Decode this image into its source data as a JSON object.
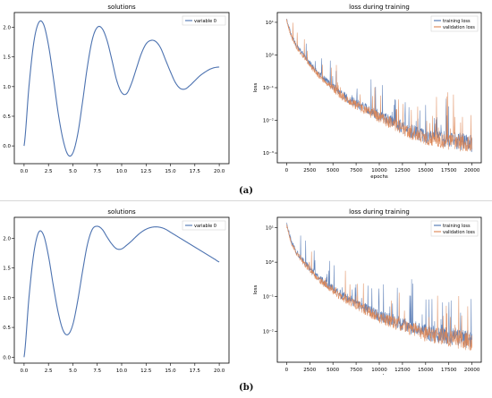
{
  "labels": {
    "a": "(a)",
    "b": "(b)"
  },
  "colors": {
    "solution": "#4c72b0",
    "training": "#4c72b0",
    "validation": "#dd8452",
    "axis": "#000000"
  },
  "chart_data": [
    {
      "id": "a-solutions",
      "type": "line",
      "title": "solutions",
      "legend": [
        "variable 0"
      ],
      "legend_position": "top-right",
      "xlim": [
        -1,
        21
      ],
      "ylim": [
        -0.3,
        2.25
      ],
      "x_ticks": [
        0.0,
        2.5,
        5.0,
        7.5,
        10.0,
        12.5,
        15.0,
        17.5,
        20.0
      ],
      "x_tick_labels": [
        "0.0",
        "2.5",
        "5.0",
        "7.5",
        "10.0",
        "12.5",
        "15.0",
        "17.5",
        "20.0"
      ],
      "y_ticks": [
        0.0,
        0.5,
        1.0,
        1.5,
        2.0
      ],
      "y_tick_labels": [
        "0.0",
        "0.5",
        "1.0",
        "1.5",
        "2.0"
      ],
      "series": [
        {
          "name": "variable 0",
          "x": [
            0,
            0.5,
            1,
            1.5,
            2,
            2.5,
            3,
            3.5,
            4,
            4.5,
            5,
            5.5,
            6,
            6.5,
            7,
            7.5,
            8,
            8.5,
            9,
            9.5,
            10,
            10.5,
            11,
            11.5,
            12,
            12.5,
            13,
            13.5,
            14,
            14.5,
            15,
            15.5,
            16,
            16.5,
            17,
            17.5,
            18,
            18.5,
            19,
            19.5,
            20
          ],
          "y": [
            0.0,
            1.0,
            1.75,
            2.08,
            2.05,
            1.7,
            1.15,
            0.55,
            0.1,
            -0.15,
            -0.12,
            0.2,
            0.75,
            1.35,
            1.8,
            2.0,
            1.98,
            1.78,
            1.45,
            1.1,
            0.9,
            0.88,
            1.05,
            1.3,
            1.55,
            1.72,
            1.78,
            1.76,
            1.65,
            1.45,
            1.25,
            1.07,
            0.97,
            0.96,
            1.02,
            1.1,
            1.18,
            1.24,
            1.29,
            1.32,
            1.33
          ]
        }
      ]
    },
    {
      "id": "a-loss",
      "type": "line",
      "title": "loss during training",
      "xlabel": "epochs",
      "ylabel": "loss",
      "yscale": "log",
      "legend": [
        "training loss",
        "validation loss"
      ],
      "legend_position": "top-right",
      "xlim": [
        -1000,
        21000
      ],
      "ylim_log10": [
        -3.3,
        1.3
      ],
      "x_ticks": [
        0,
        2500,
        5000,
        7500,
        10000,
        12500,
        15000,
        17500,
        20000
      ],
      "x_tick_labels": [
        "0",
        "2500",
        "5000",
        "7500",
        "10000",
        "12500",
        "15000",
        "17500",
        "20000"
      ],
      "y_ticks_log10": [
        1,
        0,
        -1,
        -2,
        -3
      ],
      "y_tick_labels": [
        "10¹",
        "10⁰",
        "10⁻¹",
        "10⁻²",
        "10⁻³"
      ],
      "series": [
        {
          "name": "training loss",
          "x": [
            0,
            500,
            1000,
            2000,
            3000,
            4000,
            5000,
            6000,
            7000,
            8000,
            9000,
            10000,
            11000,
            12000,
            13000,
            14000,
            15000,
            16000,
            17000,
            18000,
            19000,
            20000
          ],
          "log10_y": [
            1.1,
            0.6,
            0.3,
            -0.1,
            -0.45,
            -0.75,
            -1.0,
            -1.25,
            -1.45,
            -1.6,
            -1.75,
            -1.9,
            -2.05,
            -2.2,
            -2.35,
            -2.45,
            -2.55,
            -2.6,
            -2.65,
            -2.7,
            -2.75,
            -2.8
          ]
        },
        {
          "name": "validation loss",
          "x": [
            0,
            500,
            1000,
            2000,
            3000,
            4000,
            5000,
            6000,
            7000,
            8000,
            9000,
            10000,
            11000,
            12000,
            13000,
            14000,
            15000,
            16000,
            17000,
            18000,
            19000,
            20000
          ],
          "log10_y": [
            1.05,
            0.55,
            0.25,
            -0.15,
            -0.5,
            -0.8,
            -1.05,
            -1.3,
            -1.5,
            -1.65,
            -1.8,
            -1.95,
            -2.1,
            -2.25,
            -2.4,
            -2.5,
            -2.6,
            -2.65,
            -2.7,
            -2.75,
            -2.8,
            -2.85
          ]
        }
      ]
    },
    {
      "id": "b-solutions",
      "type": "line",
      "title": "solutions",
      "legend": [
        "variable 0"
      ],
      "legend_position": "top-right",
      "xlim": [
        -1,
        21
      ],
      "ylim": [
        -0.1,
        2.35
      ],
      "x_ticks": [
        0.0,
        2.5,
        5.0,
        7.5,
        10.0,
        12.5,
        15.0,
        17.5,
        20.0
      ],
      "x_tick_labels": [
        "0.0",
        "2.5",
        "5.0",
        "7.5",
        "10.0",
        "12.5",
        "15.0",
        "17.5",
        "20.0"
      ],
      "y_ticks": [
        0.0,
        0.5,
        1.0,
        1.5,
        2.0
      ],
      "y_tick_labels": [
        "0.0",
        "0.5",
        "1.0",
        "1.5",
        "2.0"
      ],
      "series": [
        {
          "name": "variable 0",
          "x": [
            0,
            0.5,
            1,
            1.5,
            2,
            2.5,
            3,
            3.5,
            4,
            4.5,
            5,
            5.5,
            6,
            6.5,
            7,
            7.5,
            8,
            8.5,
            9,
            9.5,
            10,
            10.5,
            11,
            11.5,
            12,
            12.5,
            13,
            13.5,
            14,
            14.5,
            15,
            15.5,
            16,
            16.5,
            17,
            17.5,
            18,
            18.5,
            19,
            19.5,
            20
          ],
          "y": [
            0.0,
            1.0,
            1.75,
            2.1,
            2.05,
            1.7,
            1.2,
            0.75,
            0.45,
            0.38,
            0.55,
            0.95,
            1.45,
            1.9,
            2.15,
            2.2,
            2.15,
            2.02,
            1.9,
            1.82,
            1.82,
            1.88,
            1.95,
            2.03,
            2.1,
            2.15,
            2.18,
            2.19,
            2.18,
            2.15,
            2.1,
            2.05,
            2.0,
            1.95,
            1.9,
            1.85,
            1.8,
            1.75,
            1.7,
            1.65,
            1.6
          ]
        }
      ]
    },
    {
      "id": "b-loss",
      "type": "line",
      "title": "loss during training",
      "xlabel": "epochs",
      "ylabel": "loss",
      "yscale": "log",
      "legend": [
        "training loss",
        "validation loss"
      ],
      "legend_position": "top-right",
      "xlim": [
        -1000,
        21000
      ],
      "ylim_log10": [
        -2.9,
        1.3
      ],
      "x_ticks": [
        0,
        2500,
        5000,
        7500,
        10000,
        12500,
        15000,
        17500,
        20000
      ],
      "x_tick_labels": [
        "0",
        "2500",
        "5000",
        "7500",
        "10000",
        "12500",
        "15000",
        "17500",
        "20000"
      ],
      "y_ticks_log10": [
        1,
        0,
        -1,
        -2
      ],
      "y_tick_labels": [
        "10¹",
        "10⁰",
        "10⁻¹",
        "10⁻²"
      ],
      "series": [
        {
          "name": "training loss",
          "x": [
            0,
            500,
            1000,
            2000,
            3000,
            4000,
            5000,
            6000,
            7000,
            8000,
            9000,
            10000,
            11000,
            12000,
            13000,
            14000,
            15000,
            16000,
            17000,
            18000,
            19000,
            20000
          ],
          "log10_y": [
            1.1,
            0.6,
            0.3,
            -0.05,
            -0.35,
            -0.6,
            -0.8,
            -1.0,
            -1.15,
            -1.3,
            -1.45,
            -1.6,
            -1.7,
            -1.8,
            -1.9,
            -2.0,
            -2.1,
            -2.15,
            -2.2,
            -2.25,
            -2.3,
            -2.35
          ]
        },
        {
          "name": "validation loss",
          "x": [
            0,
            500,
            1000,
            2000,
            3000,
            4000,
            5000,
            6000,
            7000,
            8000,
            9000,
            10000,
            11000,
            12000,
            13000,
            14000,
            15000,
            16000,
            17000,
            18000,
            19000,
            20000
          ],
          "log10_y": [
            1.05,
            0.55,
            0.25,
            -0.1,
            -0.4,
            -0.65,
            -0.85,
            -1.05,
            -1.2,
            -1.35,
            -1.5,
            -1.65,
            -1.75,
            -1.85,
            -1.95,
            -2.05,
            -2.15,
            -2.2,
            -2.25,
            -2.3,
            -2.35,
            -2.4
          ]
        }
      ]
    }
  ]
}
